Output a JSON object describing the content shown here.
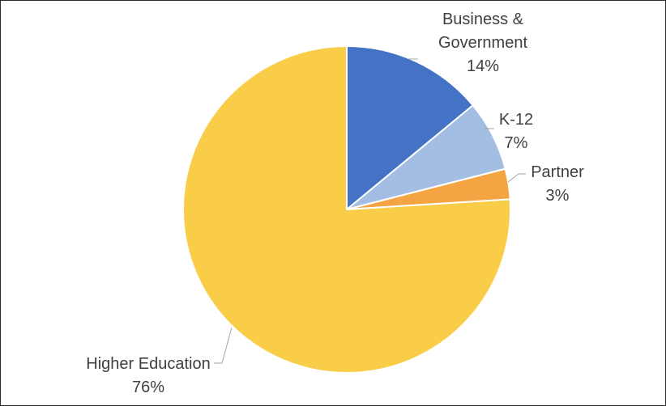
{
  "chart_data": {
    "type": "pie",
    "title": "",
    "start_angle_deg": 0,
    "direction": "clockwise",
    "legend": "none",
    "labels_shown": "outside with leader lines",
    "slices": [
      {
        "category": "Business & Government",
        "label_lines": [
          "Business &",
          "Government"
        ],
        "value": 14,
        "value_label": "14%",
        "color": "#4472c4"
      },
      {
        "category": "K-12",
        "label_lines": [
          "K-12"
        ],
        "value": 7,
        "value_label": "7%",
        "color": "#a3bde3"
      },
      {
        "category": "Partner",
        "label_lines": [
          "Partner"
        ],
        "value": 3,
        "value_label": "3%",
        "color": "#f4a443"
      },
      {
        "category": "Higher Education",
        "label_lines": [
          "Higher Education"
        ],
        "value": 76,
        "value_label": "76%",
        "color": "#f9cd48"
      }
    ]
  }
}
